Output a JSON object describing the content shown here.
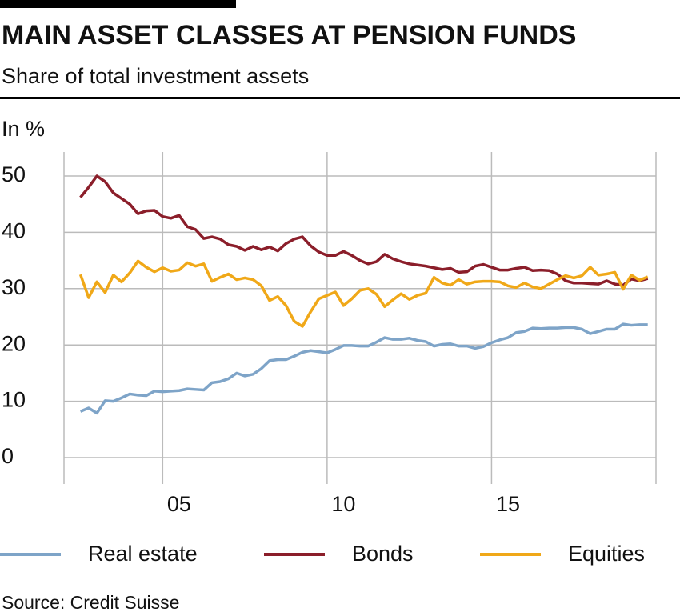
{
  "chart_data": {
    "type": "line",
    "title": "MAIN ASSET CLASSES AT PENSION FUNDS",
    "subtitle": "Share of total investment assets",
    "y_axis_label": "In %",
    "source": "Source: Credit Suisse",
    "x": [
      2002.5,
      2002.75,
      2003,
      2003.25,
      2003.5,
      2003.75,
      2004,
      2004.25,
      2004.5,
      2004.75,
      2005,
      2005.25,
      2005.5,
      2005.75,
      2006,
      2006.25,
      2006.5,
      2006.75,
      2007,
      2007.25,
      2007.5,
      2007.75,
      2008,
      2008.25,
      2008.5,
      2008.75,
      2009,
      2009.25,
      2009.5,
      2009.75,
      2010,
      2010.25,
      2010.5,
      2010.75,
      2011,
      2011.25,
      2011.5,
      2011.75,
      2012,
      2012.25,
      2012.5,
      2012.75,
      2013,
      2013.25,
      2013.5,
      2013.75,
      2014,
      2014.25,
      2014.5,
      2014.75,
      2015,
      2015.25,
      2015.5,
      2015.75,
      2016,
      2016.25,
      2016.5,
      2016.75,
      2017,
      2017.25,
      2017.5,
      2017.75,
      2018,
      2018.25,
      2018.5,
      2018.75,
      2019,
      2019.25,
      2019.5,
      2019.75
    ],
    "series": [
      {
        "name": "Real estate",
        "color": "#7ea4c8",
        "values": [
          8.2,
          8.8,
          7.9,
          10.1,
          10.0,
          10.6,
          11.3,
          11.1,
          11.0,
          11.8,
          11.7,
          11.8,
          11.9,
          12.2,
          12.1,
          12.0,
          13.3,
          13.5,
          14.0,
          15.0,
          14.5,
          14.8,
          15.8,
          17.2,
          17.4,
          17.4,
          18.0,
          18.7,
          19.0,
          18.8,
          18.6,
          19.2,
          19.9,
          19.9,
          19.8,
          19.8,
          20.5,
          21.3,
          21.0,
          21.0,
          21.2,
          20.8,
          20.6,
          19.8,
          20.1,
          20.2,
          19.8,
          19.8,
          19.4,
          19.7,
          20.4,
          20.9,
          21.3,
          22.2,
          22.4,
          23.0,
          22.9,
          23.0,
          23.0,
          23.1,
          23.1,
          22.8,
          22.0,
          22.4,
          22.8,
          22.8,
          23.7,
          23.5,
          23.6,
          23.6
        ]
      },
      {
        "name": "Bonds",
        "color": "#8b1e2a",
        "values": [
          46.2,
          48.0,
          50.0,
          49.0,
          47.0,
          46.0,
          45.0,
          43.3,
          43.8,
          43.9,
          42.8,
          42.5,
          43.0,
          41.0,
          40.5,
          38.9,
          39.2,
          38.8,
          37.8,
          37.5,
          36.8,
          37.5,
          36.9,
          37.4,
          36.7,
          38.0,
          38.8,
          39.2,
          37.6,
          36.5,
          35.9,
          35.9,
          36.6,
          35.9,
          35.0,
          34.4,
          34.8,
          36.1,
          35.3,
          34.8,
          34.4,
          34.2,
          34.0,
          33.7,
          33.4,
          33.6,
          32.9,
          33.0,
          34.0,
          34.3,
          33.8,
          33.3,
          33.3,
          33.6,
          33.8,
          33.2,
          33.3,
          33.2,
          32.6,
          31.4,
          31.0,
          31.0,
          30.9,
          30.8,
          31.4,
          30.8,
          30.6,
          31.7,
          31.4,
          31.8
        ]
      },
      {
        "name": "Equities",
        "color": "#f0a818",
        "values": [
          32.5,
          28.4,
          31.2,
          29.3,
          32.4,
          31.2,
          32.8,
          34.9,
          33.8,
          33.0,
          33.7,
          33.1,
          33.3,
          34.6,
          34.0,
          34.4,
          31.3,
          32.0,
          32.6,
          31.6,
          31.9,
          31.6,
          30.5,
          27.9,
          28.6,
          27.0,
          24.2,
          23.3,
          25.9,
          28.2,
          28.8,
          29.4,
          27.0,
          28.2,
          29.7,
          30.0,
          29.0,
          26.8,
          28.0,
          29.1,
          28.1,
          28.8,
          29.2,
          32.0,
          31.0,
          30.6,
          31.6,
          30.8,
          31.2,
          31.3,
          31.3,
          31.2,
          30.5,
          30.2,
          31.0,
          30.3,
          30.0,
          30.8,
          31.6,
          32.3,
          31.9,
          32.3,
          33.8,
          32.4,
          32.6,
          32.9,
          29.9,
          32.4,
          31.5,
          32.1
        ]
      }
    ],
    "xlim": [
      2002,
      2020
    ],
    "xticks": [
      {
        "value": 2005,
        "label": "05"
      },
      {
        "value": 2010,
        "label": "10"
      },
      {
        "value": 2015,
        "label": "15"
      }
    ],
    "ylim": [
      0,
      50
    ],
    "yticks": [
      0,
      10,
      20,
      30,
      40,
      50
    ],
    "grid": true,
    "legend": "bottom"
  }
}
